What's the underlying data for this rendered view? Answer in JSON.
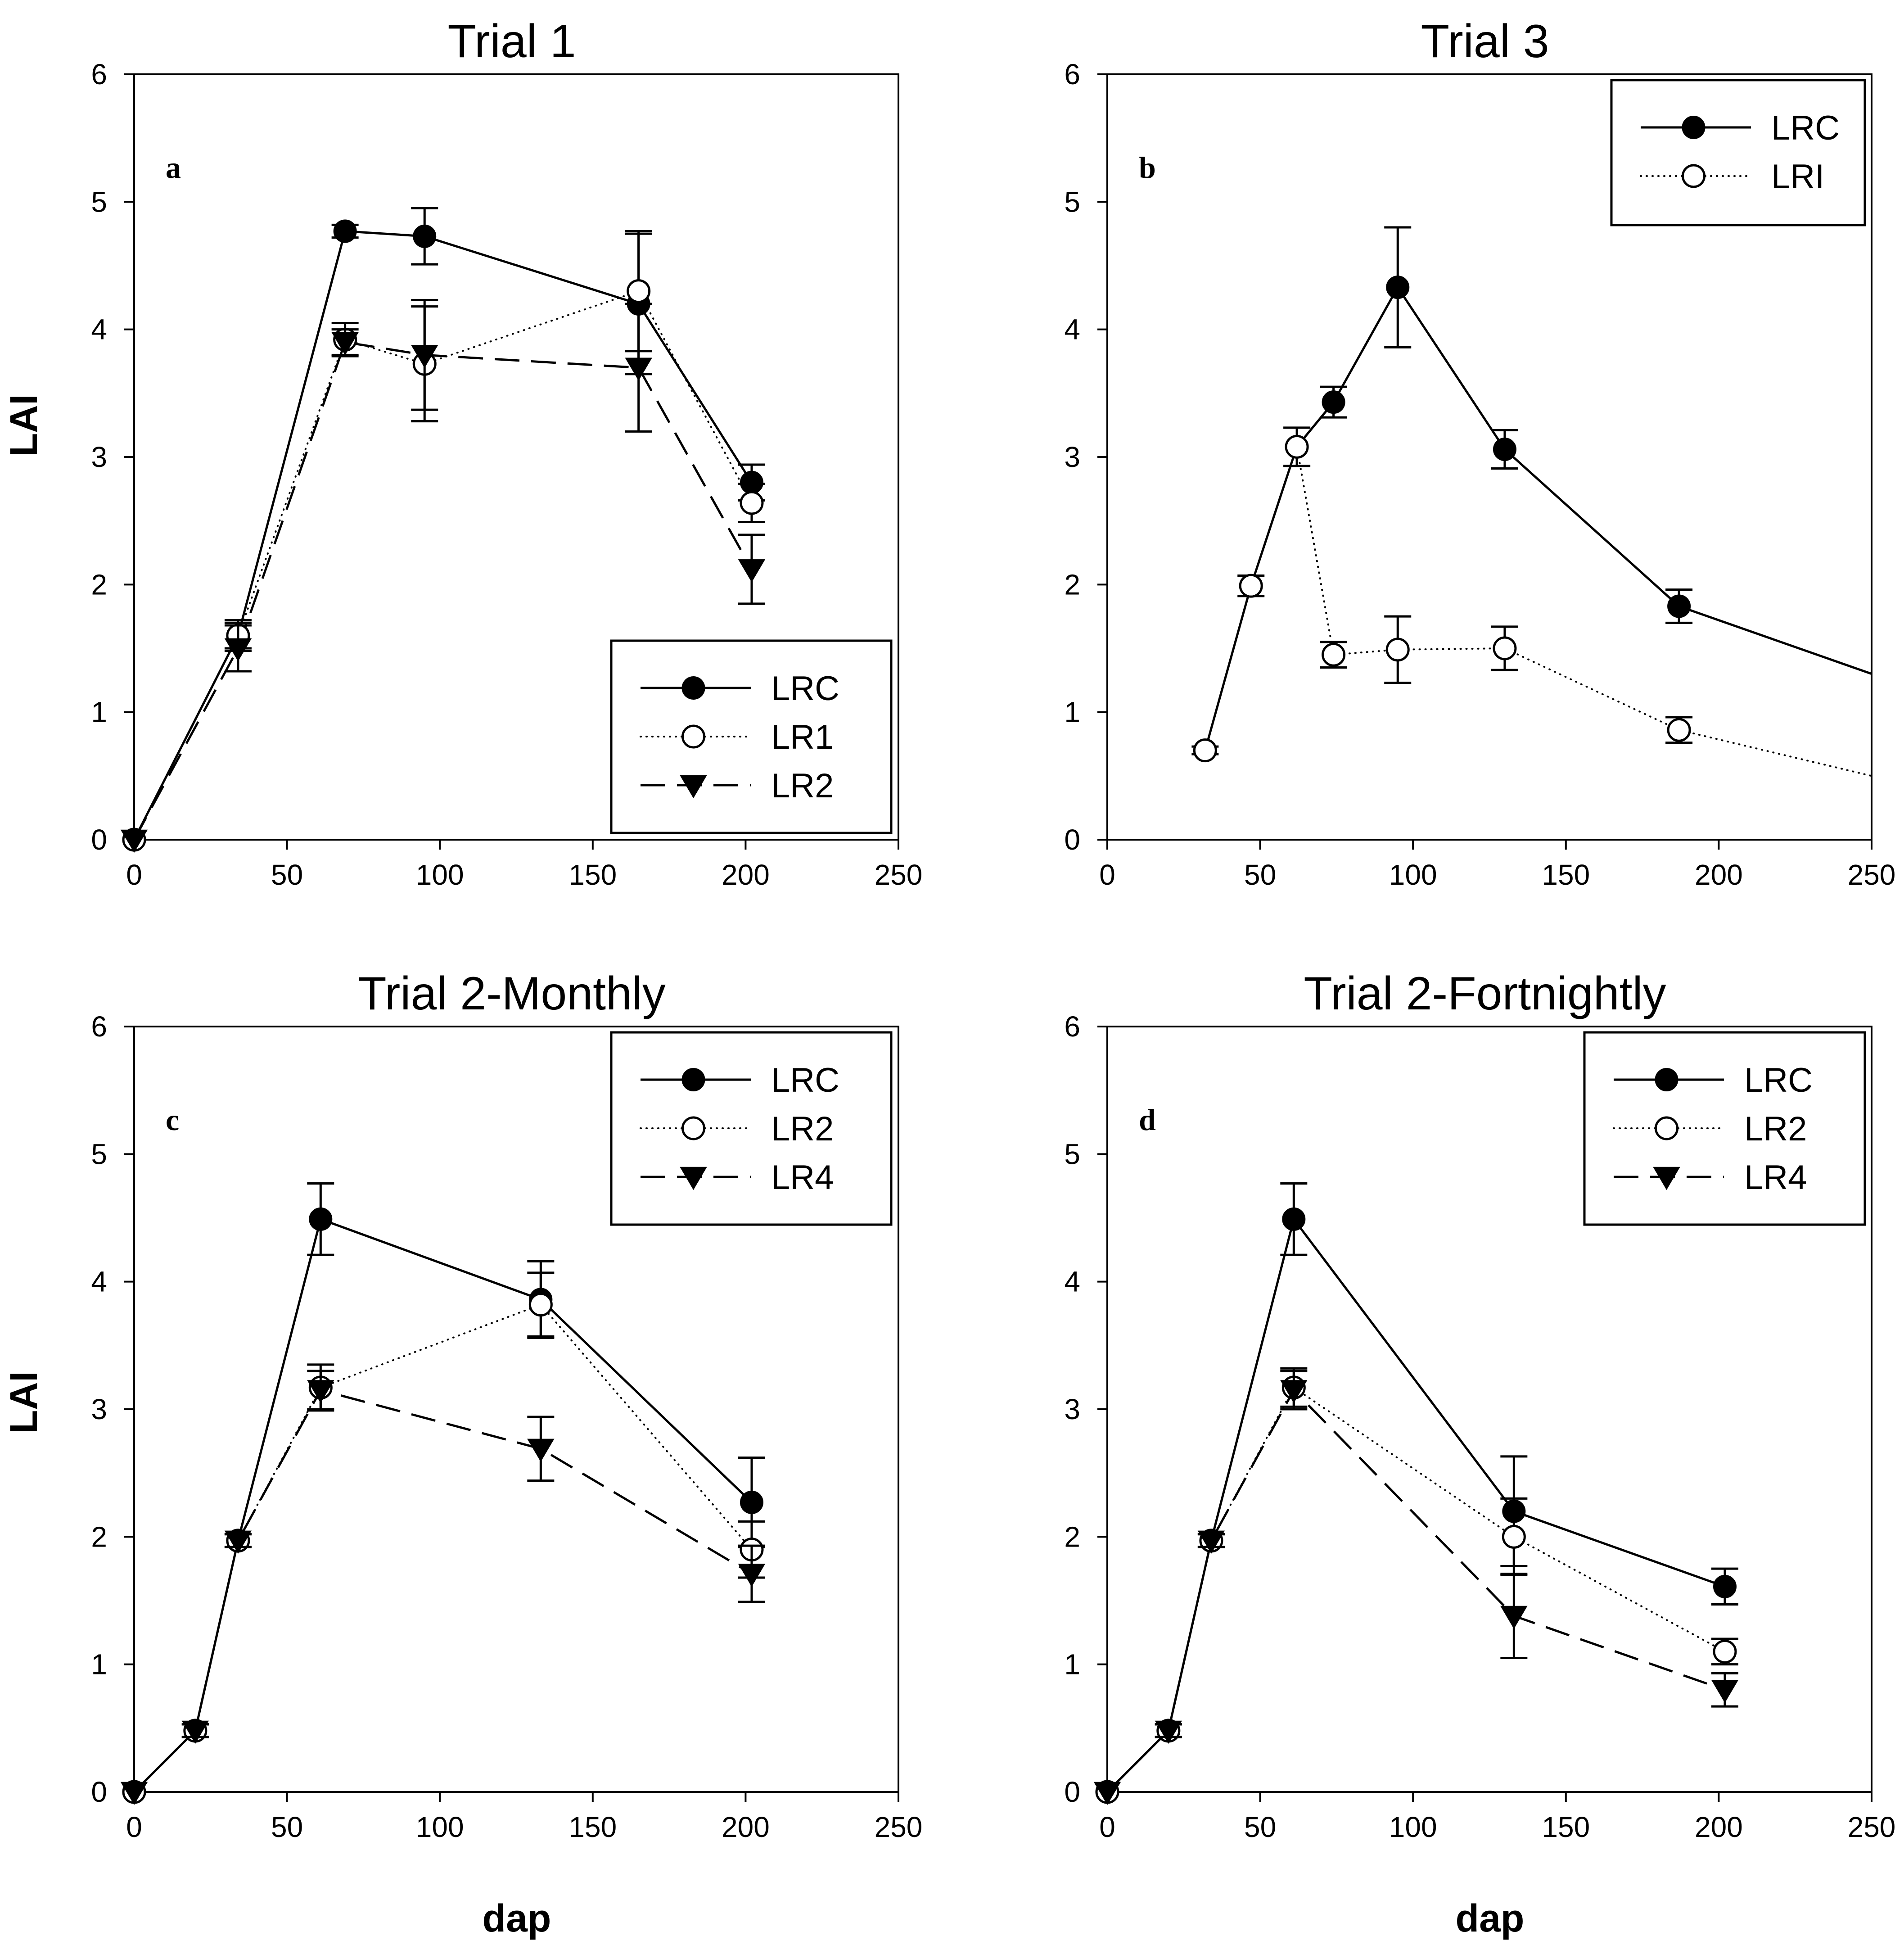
{
  "figure": {
    "ylabel": "LAI",
    "xlabel": "dap"
  },
  "chart_data": [
    {
      "type": "line",
      "title": "Trial 1",
      "panel_label": "a",
      "xlabel": "",
      "ylabel": "LAI",
      "xlim": [
        0,
        250
      ],
      "ylim": [
        0,
        6
      ],
      "xticks": [
        0,
        50,
        100,
        150,
        200,
        250
      ],
      "yticks": [
        0,
        1,
        2,
        3,
        4,
        5,
        6
      ],
      "legend_position": "bottom-right",
      "series": [
        {
          "name": "LRC",
          "marker": "filled-circle",
          "line": "solid",
          "x": [
            0,
            34,
            69,
            95,
            165,
            202
          ],
          "y": [
            0,
            1.6,
            4.77,
            4.73,
            4.2,
            2.8
          ],
          "err": [
            0,
            0.12,
            0.05,
            0.22,
            0.55,
            0.14
          ]
        },
        {
          "name": "LR1",
          "marker": "open-circle",
          "line": "dotted",
          "x": [
            0,
            34,
            69,
            95,
            165,
            202
          ],
          "y": [
            0,
            1.6,
            3.92,
            3.73,
            4.3,
            2.64
          ],
          "err": [
            0,
            0.1,
            0.13,
            0.45,
            0.47,
            0.15
          ]
        },
        {
          "name": "LR2",
          "marker": "filled-triangle-down",
          "line": "dashed",
          "x": [
            0,
            34,
            69,
            95,
            165,
            202
          ],
          "y": [
            0,
            1.5,
            3.9,
            3.8,
            3.7,
            2.12
          ],
          "err": [
            0,
            0.18,
            0.1,
            0.43,
            0.5,
            0.27
          ]
        }
      ]
    },
    {
      "type": "line",
      "title": "Trial 3",
      "panel_label": "b",
      "xlabel": "",
      "ylabel": "",
      "xlim": [
        0,
        250
      ],
      "ylim": [
        0,
        6
      ],
      "xticks": [
        0,
        50,
        100,
        150,
        200,
        250
      ],
      "yticks": [
        0,
        1,
        2,
        3,
        4,
        5,
        6
      ],
      "legend_position": "top-right",
      "series": [
        {
          "name": "LRC",
          "marker": "filled-circle",
          "line": "solid",
          "x": [
            32,
            47,
            62,
            74,
            95,
            130,
            187,
            250
          ],
          "y": [
            0.7,
            1.99,
            3.08,
            3.43,
            4.33,
            3.06,
            1.83,
            1.3
          ],
          "err": [
            0,
            0,
            0,
            0.12,
            0.47,
            0.15,
            0.13,
            0
          ],
          "markers_shown": [
            false,
            false,
            false,
            true,
            true,
            true,
            true,
            false
          ]
        },
        {
          "name": "LRI",
          "marker": "open-circle",
          "line": "dotted",
          "x": [
            32,
            47,
            62,
            74,
            95,
            130,
            187,
            250
          ],
          "y": [
            0.7,
            1.99,
            3.08,
            1.45,
            1.49,
            1.5,
            0.86,
            0.5
          ],
          "err": [
            0.03,
            0.08,
            0.15,
            0.1,
            0.26,
            0.17,
            0.1,
            0
          ],
          "markers_shown": [
            true,
            true,
            true,
            true,
            true,
            true,
            true,
            false
          ]
        }
      ]
    },
    {
      "type": "line",
      "title": "Trial 2-Monthly",
      "panel_label": "c",
      "xlabel": "dap",
      "ylabel": "LAI",
      "xlim": [
        0,
        250
      ],
      "ylim": [
        0,
        6
      ],
      "xticks": [
        0,
        50,
        100,
        150,
        200,
        250
      ],
      "yticks": [
        0,
        1,
        2,
        3,
        4,
        5,
        6
      ],
      "legend_position": "top-right",
      "series": [
        {
          "name": "LRC",
          "marker": "filled-circle",
          "line": "solid",
          "x": [
            0,
            20,
            34,
            61,
            133,
            202
          ],
          "y": [
            0,
            0.48,
            1.97,
            4.49,
            3.86,
            2.27
          ],
          "err": [
            0,
            0.05,
            0.05,
            0.28,
            0.3,
            0.35
          ]
        },
        {
          "name": "LR2",
          "marker": "open-circle",
          "line": "dotted",
          "x": [
            0,
            20,
            34,
            61,
            133,
            202
          ],
          "y": [
            0,
            0.48,
            1.97,
            3.17,
            3.82,
            1.9
          ],
          "err": [
            0,
            0.05,
            0.05,
            0.18,
            0.25,
            0.22
          ]
        },
        {
          "name": "LR4",
          "marker": "filled-triangle-down",
          "line": "dashed",
          "x": [
            0,
            20,
            34,
            61,
            133,
            202
          ],
          "y": [
            0,
            0.48,
            1.97,
            3.15,
            2.69,
            1.71
          ],
          "err": [
            0,
            0.05,
            0.05,
            0.15,
            0.25,
            0.22
          ]
        }
      ]
    },
    {
      "type": "line",
      "title": "Trial 2-Fortnightly",
      "panel_label": "d",
      "xlabel": "dap",
      "ylabel": "",
      "xlim": [
        0,
        250
      ],
      "ylim": [
        0,
        6
      ],
      "xticks": [
        0,
        50,
        100,
        150,
        200,
        250
      ],
      "yticks": [
        0,
        1,
        2,
        3,
        4,
        5,
        6
      ],
      "legend_position": "top-right",
      "series": [
        {
          "name": "LRC",
          "marker": "filled-circle",
          "line": "solid",
          "x": [
            0,
            20,
            34,
            61,
            133,
            202
          ],
          "y": [
            0,
            0.48,
            1.97,
            4.49,
            2.2,
            1.61
          ],
          "err": [
            0,
            0.05,
            0.05,
            0.28,
            0.43,
            0.14
          ]
        },
        {
          "name": "LR2",
          "marker": "open-circle",
          "line": "dotted",
          "x": [
            0,
            20,
            34,
            61,
            133,
            202
          ],
          "y": [
            0,
            0.48,
            1.97,
            3.17,
            2.0,
            1.1
          ],
          "err": [
            0,
            0.05,
            0.05,
            0.15,
            0.3,
            0.1
          ]
        },
        {
          "name": "LR4",
          "marker": "filled-triangle-down",
          "line": "dashed",
          "x": [
            0,
            20,
            34,
            61,
            133,
            202
          ],
          "y": [
            0,
            0.48,
            1.97,
            3.15,
            1.38,
            0.8
          ],
          "err": [
            0,
            0.05,
            0.05,
            0.15,
            0.33,
            0.13
          ]
        }
      ]
    }
  ]
}
